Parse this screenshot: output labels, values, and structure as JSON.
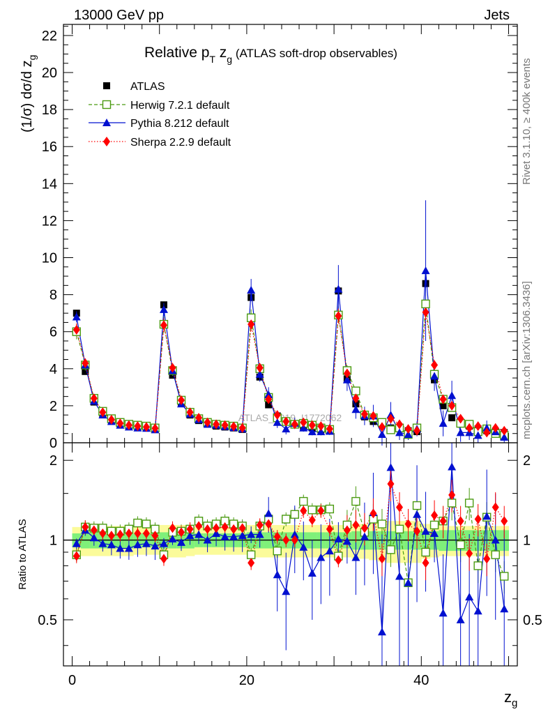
{
  "header": {
    "left": "13000 GeV pp",
    "right": "Jets"
  },
  "side_labels": {
    "rivet": "Rivet 3.1.10, ≥ 400k events",
    "mcplots": "mcplots.cern.ch [arXiv:1306.3436]"
  },
  "watermark": "ATLAS_2019_I1772062",
  "colors": {
    "atlas": "#000000",
    "herwig": "#4a9a10",
    "pythia": "#0010d0",
    "sherpa": "#ff0000",
    "band_inner": "#7ff07a",
    "band_outer": "#fbfb9a"
  },
  "chart_data": [
    {
      "id": "main",
      "type": "scatter",
      "title": "Relative p_T z_g (ATLAS soft-drop observables)",
      "title_main": "Relative p",
      "title_sub_t": "T",
      "title_z": " z",
      "title_sub_g": "g",
      "title_tail": " (ATLAS soft-drop observables)",
      "ylabel": "(1/σ) dσ/d z_g",
      "ylabel_main": "(1/σ) dσ/d z",
      "ylabel_sub": "g",
      "xlim": [
        -1,
        51
      ],
      "ylim": [
        0,
        22.6
      ],
      "yticks": [
        0,
        2,
        4,
        6,
        8,
        10,
        12,
        14,
        16,
        18,
        20,
        22
      ],
      "x": [
        0.5,
        1.5,
        2.5,
        3.5,
        4.5,
        5.5,
        6.5,
        7.5,
        8.5,
        9.5,
        10.5,
        11.5,
        12.5,
        13.5,
        14.5,
        15.5,
        16.5,
        17.5,
        18.5,
        19.5,
        20.5,
        21.5,
        22.5,
        23.5,
        24.5,
        25.5,
        26.5,
        27.5,
        28.5,
        29.5,
        30.5,
        31.5,
        32.5,
        33.5,
        34.5,
        35.5,
        36.5,
        37.5,
        38.5,
        39.5,
        40.5,
        41.5,
        42.5,
        43.5,
        44.5,
        45.5,
        46.5,
        47.5,
        48.5,
        49.5
      ],
      "legend": [
        "ATLAS",
        "Herwig 7.2.1 default",
        "Pythia 8.212 default",
        "Sherpa 2.2.9 default"
      ],
      "series": [
        {
          "name": "ATLAS",
          "values": [
            7.0,
            3.85,
            2.2,
            1.55,
            1.2,
            1.0,
            0.9,
            0.85,
            0.8,
            0.75,
            7.45,
            3.65,
            2.15,
            1.5,
            1.2,
            1.0,
            0.9,
            0.85,
            0.8,
            0.72,
            7.85,
            3.55,
            2.05,
            1.45,
            1.15,
            1.0,
            0.85,
            0.8,
            0.7,
            0.68,
            8.2,
            3.45,
            2.1,
            1.4,
            1.15,
            1.0,
            0.8,
            0.75,
            0.65,
            0.6,
            8.6,
            3.4,
            2.0,
            1.35,
            1.1,
            0.9,
            0.75,
            0.65,
            0.6,
            0.55
          ]
        },
        {
          "name": "Herwig 7.2.1 default",
          "values": [
            6.0,
            4.2,
            2.4,
            1.7,
            1.3,
            1.1,
            1.0,
            0.95,
            0.9,
            0.8,
            6.4,
            3.9,
            2.3,
            1.65,
            1.3,
            1.1,
            1.0,
            0.95,
            0.9,
            0.8,
            6.75,
            4.0,
            2.45,
            1.35,
            1.15,
            1.0,
            1.05,
            0.95,
            0.8,
            0.72,
            6.9,
            3.9,
            2.8,
            1.5,
            1.35,
            1.1,
            0.7,
            0.8,
            0.45,
            0.8,
            7.5,
            3.7,
            2.35,
            1.9,
            1.05,
            1.0,
            0.6,
            0.75,
            0.5,
            0.4
          ]
        },
        {
          "name": "Pythia 8.212 default",
          "values": [
            6.8,
            4.2,
            2.25,
            1.5,
            1.15,
            0.95,
            0.85,
            0.8,
            0.78,
            0.7,
            7.2,
            3.9,
            2.1,
            1.55,
            1.25,
            1.0,
            0.95,
            0.88,
            0.82,
            0.75,
            8.25,
            3.7,
            2.6,
            1.1,
            0.75,
            1.05,
            0.8,
            0.6,
            0.6,
            0.62,
            8.3,
            3.4,
            1.8,
            1.45,
            1.45,
            0.45,
            1.5,
            0.55,
            0.45,
            0.75,
            9.3,
            3.6,
            1.05,
            2.55,
            0.55,
            0.55,
            0.4,
            0.8,
            0.6,
            0.3
          ]
        },
        {
          "name": "Sherpa 2.2.9 default",
          "values": [
            6.1,
            4.3,
            2.4,
            1.65,
            1.25,
            1.05,
            0.95,
            0.9,
            0.85,
            0.78,
            6.35,
            4.05,
            2.3,
            1.65,
            1.35,
            1.1,
            1.0,
            0.95,
            0.88,
            0.8,
            6.4,
            4.05,
            2.35,
            1.5,
            1.15,
            1.0,
            1.1,
            0.95,
            0.9,
            0.75,
            6.85,
            3.75,
            2.4,
            1.55,
            1.45,
            0.85,
            1.3,
            1.0,
            0.75,
            0.65,
            7.05,
            4.2,
            2.35,
            2.0,
            1.3,
            0.8,
            0.9,
            0.55,
            0.8,
            0.65
          ]
        }
      ]
    },
    {
      "id": "ratio",
      "type": "scatter",
      "ylabel": "Ratio to ATLAS",
      "xlabel": "z_g",
      "xlabel_main": "z",
      "xlabel_sub": "g",
      "xlim": [
        -1,
        51
      ],
      "ylim": [
        0.335,
        2.33
      ],
      "yticks": [
        0.5,
        1,
        2
      ],
      "xticks": [
        0,
        20,
        40
      ],
      "reference": 1,
      "band_inner": [
        0.06,
        0.07,
        0.07,
        0.07,
        0.07,
        0.07,
        0.07,
        0.06,
        0.06,
        0.06,
        0.07,
        0.07,
        0.07,
        0.07,
        0.06,
        0.06,
        0.06,
        0.06,
        0.06,
        0.06,
        0.07,
        0.07,
        0.07,
        0.07,
        0.07,
        0.07,
        0.07,
        0.07,
        0.07,
        0.07,
        0.07,
        0.07,
        0.08,
        0.08,
        0.08,
        0.08,
        0.08,
        0.08,
        0.08,
        0.08,
        0.08,
        0.08,
        0.09,
        0.09,
        0.09,
        0.09,
        0.09,
        0.09,
        0.09,
        0.09
      ],
      "band_outer": [
        0.12,
        0.13,
        0.13,
        0.13,
        0.13,
        0.13,
        0.13,
        0.12,
        0.12,
        0.12,
        0.14,
        0.14,
        0.14,
        0.13,
        0.12,
        0.12,
        0.12,
        0.12,
        0.12,
        0.12,
        0.14,
        0.14,
        0.14,
        0.14,
        0.14,
        0.14,
        0.14,
        0.14,
        0.14,
        0.14,
        0.14,
        0.14,
        0.15,
        0.15,
        0.16,
        0.17,
        0.18,
        0.18,
        0.18,
        0.18,
        0.15,
        0.14,
        0.13,
        0.13,
        0.13,
        0.13,
        0.13,
        0.13,
        0.13,
        0.13
      ],
      "series": [
        {
          "name": "Herwig 7.2.1 default",
          "values": [
            0.88,
            1.12,
            1.11,
            1.11,
            1.08,
            1.08,
            1.1,
            1.16,
            1.15,
            1.1,
            0.88,
            1.07,
            1.08,
            1.1,
            1.18,
            1.13,
            1.15,
            1.18,
            1.15,
            1.13,
            0.88,
            1.13,
            1.2,
            0.91,
            1.2,
            1.25,
            1.4,
            1.3,
            1.3,
            1.31,
            0.87,
            1.14,
            1.4,
            1.07,
            1.2,
            1.15,
            0.92,
            1.1,
            0.69,
            1.35,
            0.9,
            1.14,
            1.18,
            1.38,
            0.96,
            1.38,
            0.8,
            1.22,
            0.88,
            0.73
          ]
        },
        {
          "name": "Pythia 8.212 default",
          "values": [
            0.97,
            1.09,
            1.02,
            0.97,
            0.96,
            0.93,
            0.93,
            0.96,
            0.97,
            0.95,
            0.97,
            1.01,
            0.98,
            1.04,
            1.05,
            1.0,
            1.06,
            1.03,
            1.03,
            1.04,
            1.05,
            1.05,
            1.26,
            0.74,
            0.64,
            1.05,
            0.94,
            0.75,
            0.86,
            0.91,
            1.01,
            0.99,
            0.86,
            1.03,
            1.27,
            0.45,
            1.88,
            0.73,
            0.69,
            1.25,
            1.08,
            1.06,
            0.53,
            1.89,
            0.5,
            0.61,
            0.54,
            1.23,
            1.0,
            0.55
          ]
        },
        {
          "name": "Sherpa 2.2.9 default",
          "values": [
            0.87,
            1.12,
            1.09,
            1.06,
            1.04,
            1.05,
            1.06,
            1.06,
            1.06,
            1.04,
            0.85,
            1.11,
            1.07,
            1.1,
            1.13,
            1.1,
            1.11,
            1.12,
            1.1,
            1.11,
            0.82,
            1.14,
            1.15,
            1.03,
            1.0,
            1.0,
            1.29,
            1.19,
            1.29,
            1.1,
            0.84,
            1.09,
            1.14,
            1.11,
            1.26,
            0.85,
            1.63,
            1.33,
            1.15,
            1.08,
            0.82,
            1.24,
            1.18,
            1.48,
            1.18,
            0.89,
            1.2,
            0.85,
            1.33,
            1.18
          ]
        }
      ]
    }
  ]
}
